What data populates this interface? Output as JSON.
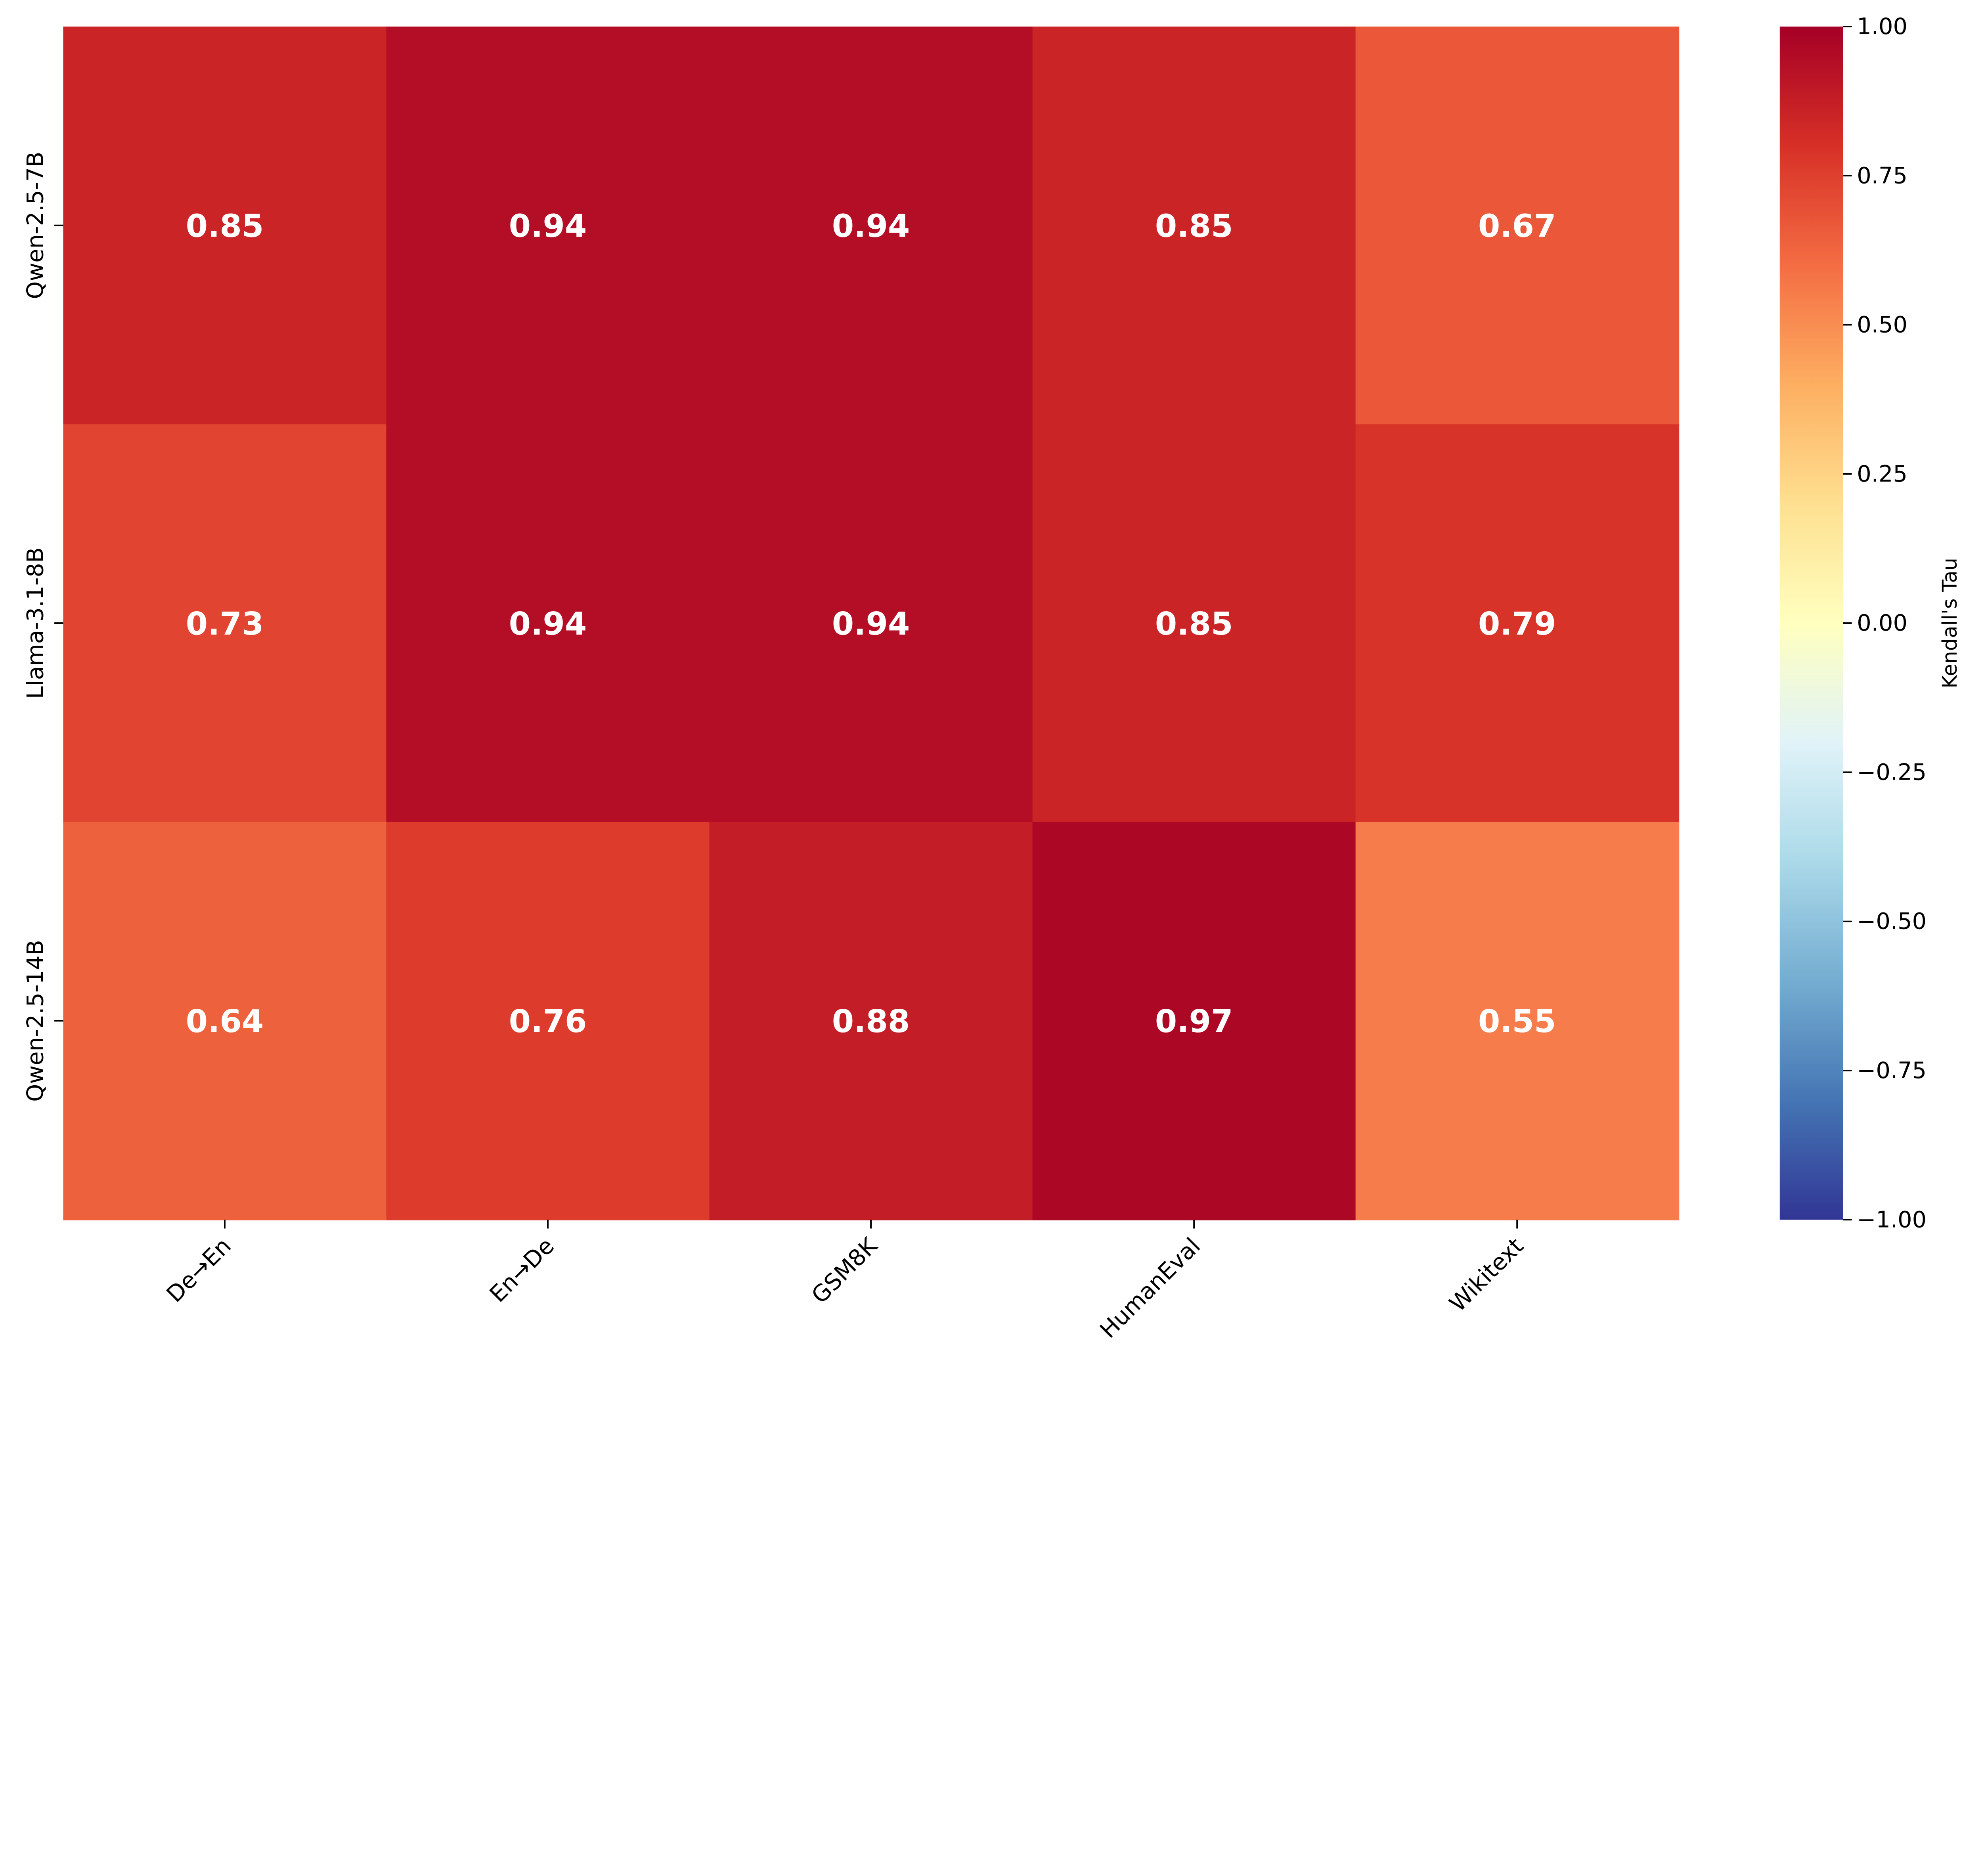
{
  "chart_data": {
    "type": "heatmap",
    "title": "",
    "xlabel": "",
    "ylabel": "",
    "x_categories": [
      "De→En",
      "En→De",
      "GSM8K",
      "HumanEval",
      "Wikitext"
    ],
    "y_categories": [
      "Qwen-2.5-7B",
      "Llama-3.1-8B",
      "Qwen-2.5-14B"
    ],
    "values": [
      [
        0.85,
        0.94,
        0.94,
        0.85,
        0.67
      ],
      [
        0.73,
        0.94,
        0.94,
        0.85,
        0.79
      ],
      [
        0.64,
        0.76,
        0.88,
        0.97,
        0.55
      ]
    ],
    "value_labels": [
      [
        "0.85",
        "0.94",
        "0.94",
        "0.85",
        "0.67"
      ],
      [
        "0.73",
        "0.94",
        "0.94",
        "0.85",
        "0.79"
      ],
      [
        "0.64",
        "0.76",
        "0.88",
        "0.97",
        "0.55"
      ]
    ],
    "colormap": "RdYlBu_r",
    "colormap_stops": [
      "#313695",
      "#4575b4",
      "#74add1",
      "#abd9e9",
      "#e0f3f8",
      "#ffffbf",
      "#fee090",
      "#fdae61",
      "#f46d43",
      "#d73027",
      "#a50026"
    ],
    "vmin": -1.0,
    "vmax": 1.0,
    "colorbar": {
      "label": "Kendall's Tau",
      "ticks": [
        1.0,
        0.75,
        0.5,
        0.25,
        0.0,
        -0.25,
        -0.5,
        -0.75,
        -1.0
      ],
      "tick_labels": [
        "1.00",
        "0.75",
        "0.50",
        "0.25",
        "0.00",
        "−0.25",
        "−0.50",
        "−0.75",
        "−1.00"
      ]
    },
    "grid": false
  }
}
